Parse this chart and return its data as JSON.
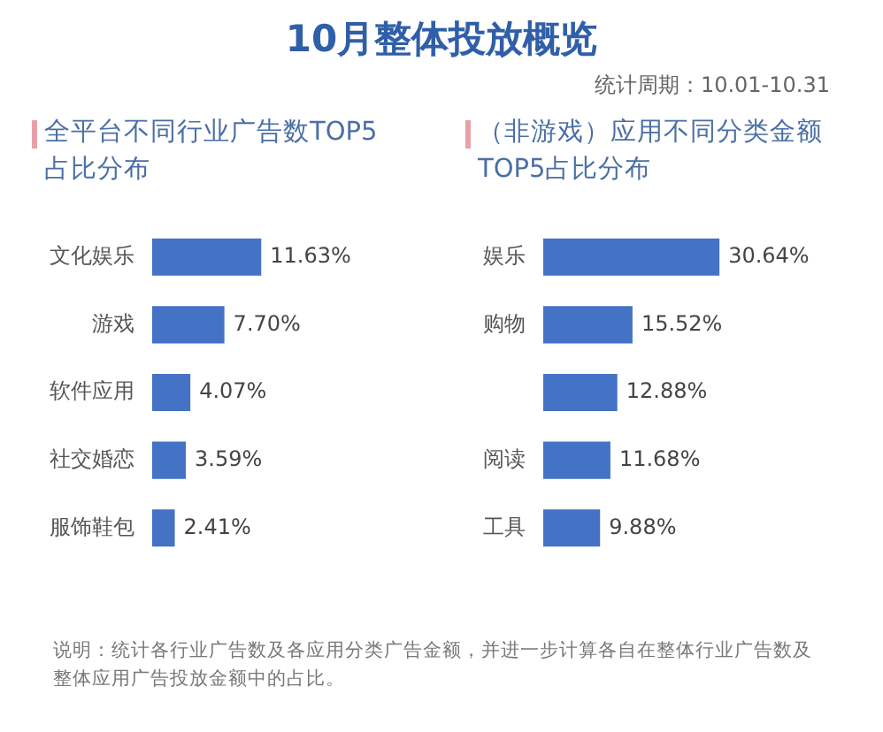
{
  "chart_data": [
    {
      "type": "other",
      "title": "10月整体投放概览",
      "subtitle": "统计周期：10.01-10.31",
      "annotations": [
        "说明：统计各行业广告数及各应用分类广告金额，并进一步计算各自在整体行业广告数及整体应用广告投放金额中的占比。"
      ]
    },
    {
      "type": "bar",
      "orientation": "horizontal",
      "title": "全平台不同行业广告数TOP5占比分布",
      "categories": [
        "文化娱乐",
        "游戏",
        "软件应用",
        "社交婚恋",
        "服饰鞋包"
      ],
      "values": [
        11.63,
        7.7,
        4.07,
        3.59,
        2.41
      ],
      "value_labels": [
        "11.63%",
        "7.70%",
        "4.07%",
        "3.59%",
        "2.41%"
      ],
      "color": "#4472c4",
      "grid": false,
      "legend": false,
      "tick_labels": "y"
    },
    {
      "type": "bar",
      "orientation": "horizontal",
      "title": "（非游戏）应用不同分类金额TOP5占比分布",
      "categories": [
        "娱乐",
        "购物",
        null,
        "阅读",
        "工具"
      ],
      "values": [
        30.64,
        15.52,
        12.88,
        11.68,
        9.88
      ],
      "value_labels": [
        "30.64%",
        "15.52%",
        "12.88%",
        "11.68%",
        "9.88%"
      ],
      "color": "#4472c4",
      "grid": false,
      "legend": false,
      "tick_labels": "y"
    }
  ]
}
